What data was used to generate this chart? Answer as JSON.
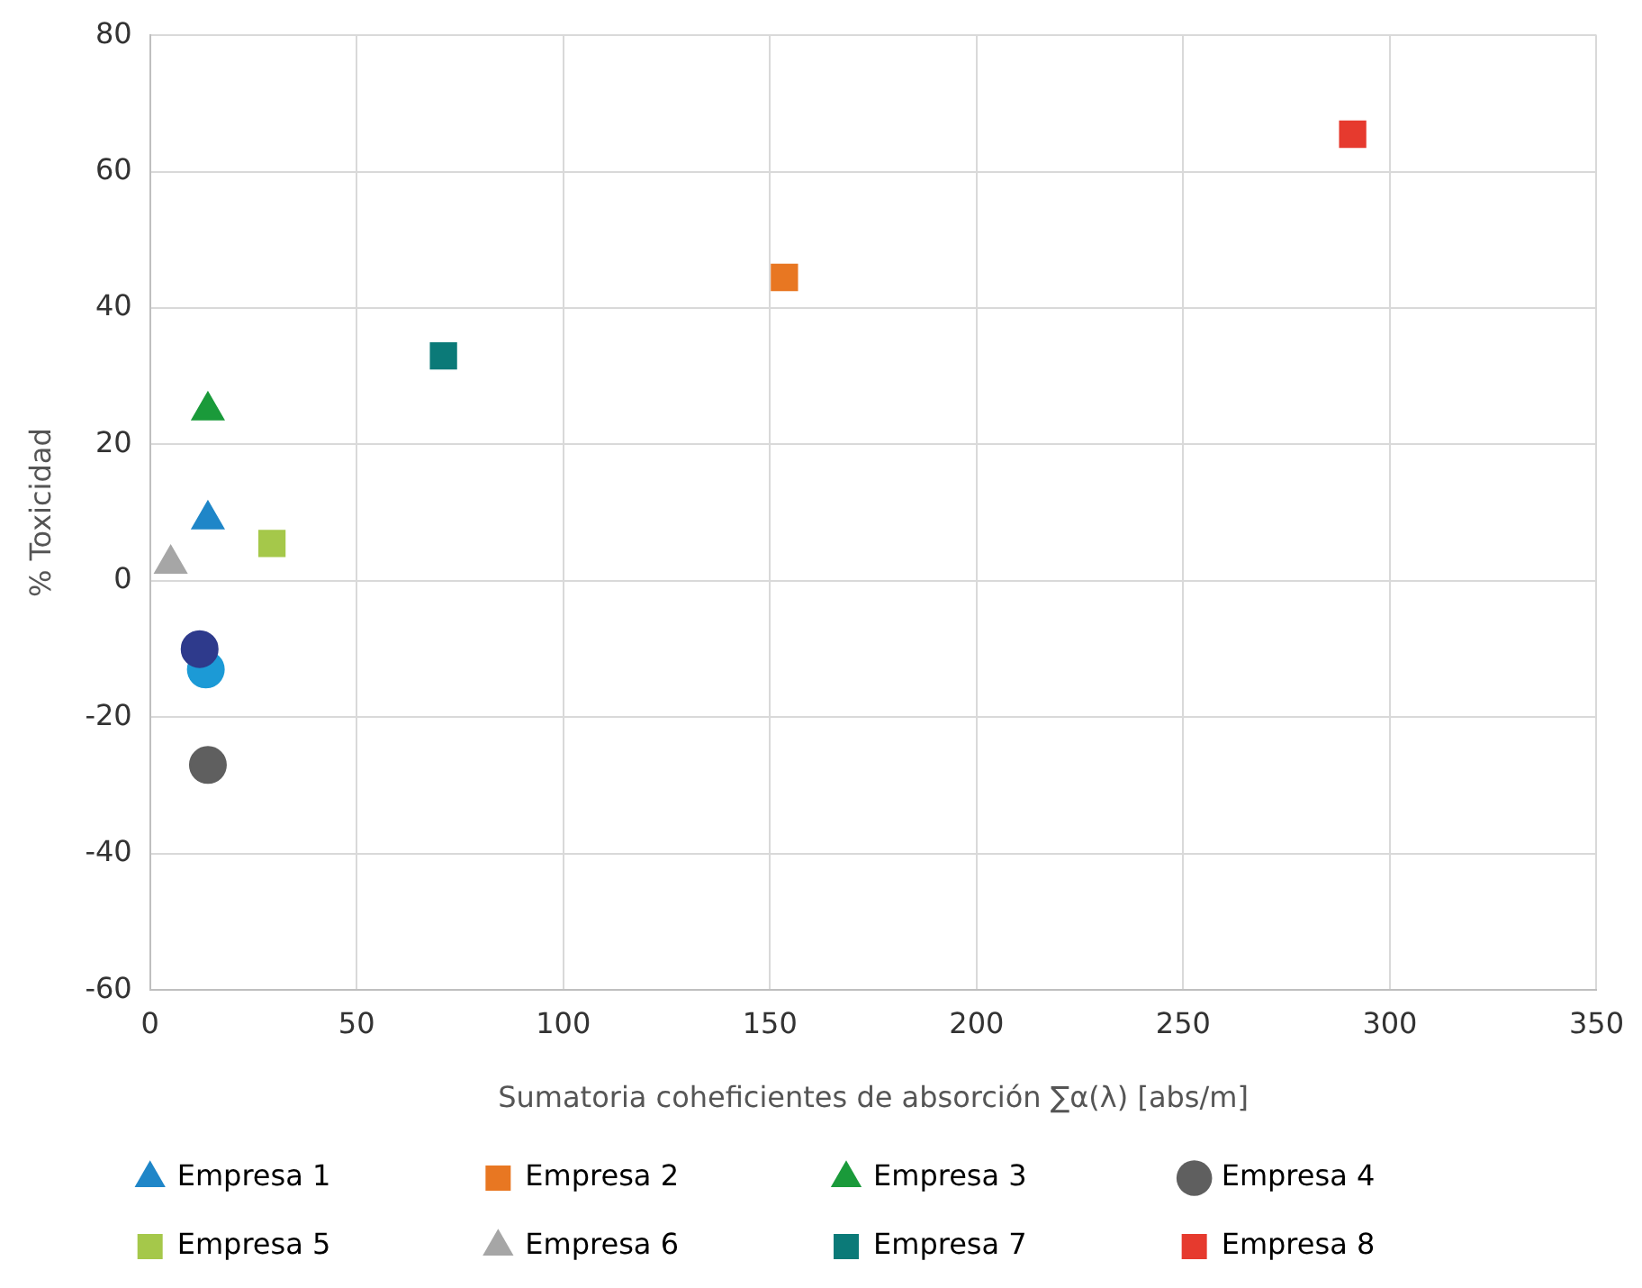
{
  "chart_data": {
    "type": "scatter",
    "xlabel": "Sumatoria coheficientes de absorción ∑α(λ) [abs/m]",
    "ylabel": "% Toxicidad",
    "xlim": [
      0,
      350
    ],
    "xticks": [
      0,
      50,
      100,
      150,
      200,
      250,
      300,
      350
    ],
    "ylim": [
      -60,
      80
    ],
    "yticks": [
      -60,
      -40,
      -20,
      0,
      20,
      40,
      60,
      80
    ],
    "grid": true,
    "legend": "bottom",
    "series": [
      {
        "name": "Empresa 1",
        "color": "#1f86c8",
        "marker": "triangle",
        "x": [
          14
        ],
        "values": [
          9
        ]
      },
      {
        "name": "Empresa 2",
        "color": "#e87722",
        "marker": "square",
        "x": [
          153.5
        ],
        "values": [
          44.5
        ]
      },
      {
        "name": "Empresa 3",
        "color": "#1a9a3a",
        "marker": "triangle",
        "x": [
          14
        ],
        "values": [
          25
        ]
      },
      {
        "name": "Empresa 4",
        "color": "#5f5f5f",
        "marker": "circle",
        "x": [
          14
        ],
        "values": [
          -27
        ]
      },
      {
        "name": "Empresa 5",
        "color": "#a5c84a",
        "marker": "square",
        "x": [
          29.5
        ],
        "values": [
          5.5
        ]
      },
      {
        "name": "Empresa 6",
        "color": "#a6a6a6",
        "marker": "triangle",
        "x": [
          5
        ],
        "values": [
          2.5
        ]
      },
      {
        "name": "Empresa 7",
        "color": "#0b7a78",
        "marker": "square",
        "x": [
          71
        ],
        "values": [
          33
        ]
      },
      {
        "name": "Empresa 8",
        "color": "#e63a2e",
        "marker": "square",
        "x": [
          291
        ],
        "values": [
          65.5
        ]
      },
      {
        "color": "#2e3a8c",
        "marker": "circle",
        "x": [
          12
        ],
        "values": [
          -10
        ]
      },
      {
        "color": "#1c9ad6",
        "marker": "circle",
        "x": [
          13.5
        ],
        "values": [
          -13
        ]
      }
    ]
  }
}
